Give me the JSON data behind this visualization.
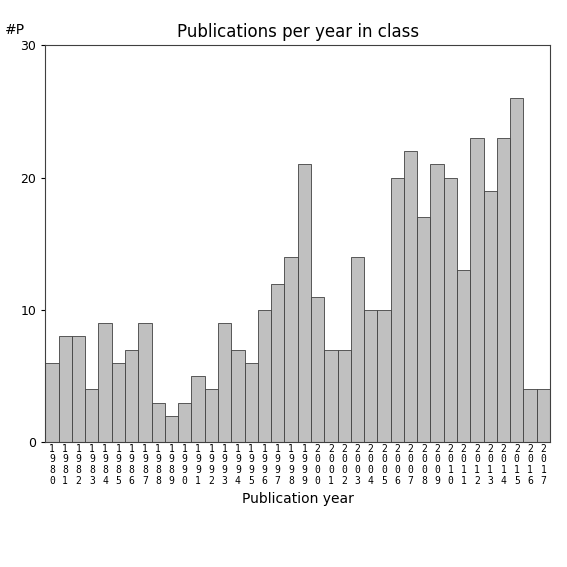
{
  "years": [
    1980,
    1981,
    1982,
    1983,
    1984,
    1985,
    1986,
    1987,
    1988,
    1989,
    1990,
    1991,
    1992,
    1993,
    1994,
    1995,
    1996,
    1997,
    1998,
    1999,
    2000,
    2001,
    2002,
    2003,
    2004,
    2005,
    2006,
    2007,
    2008,
    2009,
    2010,
    2011,
    2012,
    2013,
    2014,
    2015,
    2016,
    2017
  ],
  "values": [
    6,
    8,
    8,
    4,
    9,
    6,
    7,
    9,
    3,
    2,
    3,
    5,
    4,
    9,
    7,
    6,
    10,
    12,
    14,
    21,
    11,
    7,
    7,
    14,
    10,
    10,
    20,
    22,
    17,
    21,
    20,
    13,
    23,
    19,
    23,
    26,
    4,
    4
  ],
  "bar_color": "#c0c0c0",
  "bar_edgecolor": "#404040",
  "title": "Publications per year in class",
  "xlabel": "Publication year",
  "ylabel": "#P",
  "ylim": [
    0,
    30
  ],
  "yticks": [
    0,
    10,
    20,
    30
  ],
  "background_color": "#ffffff",
  "title_fontsize": 12,
  "label_fontsize": 10,
  "tick_fontsize": 9
}
